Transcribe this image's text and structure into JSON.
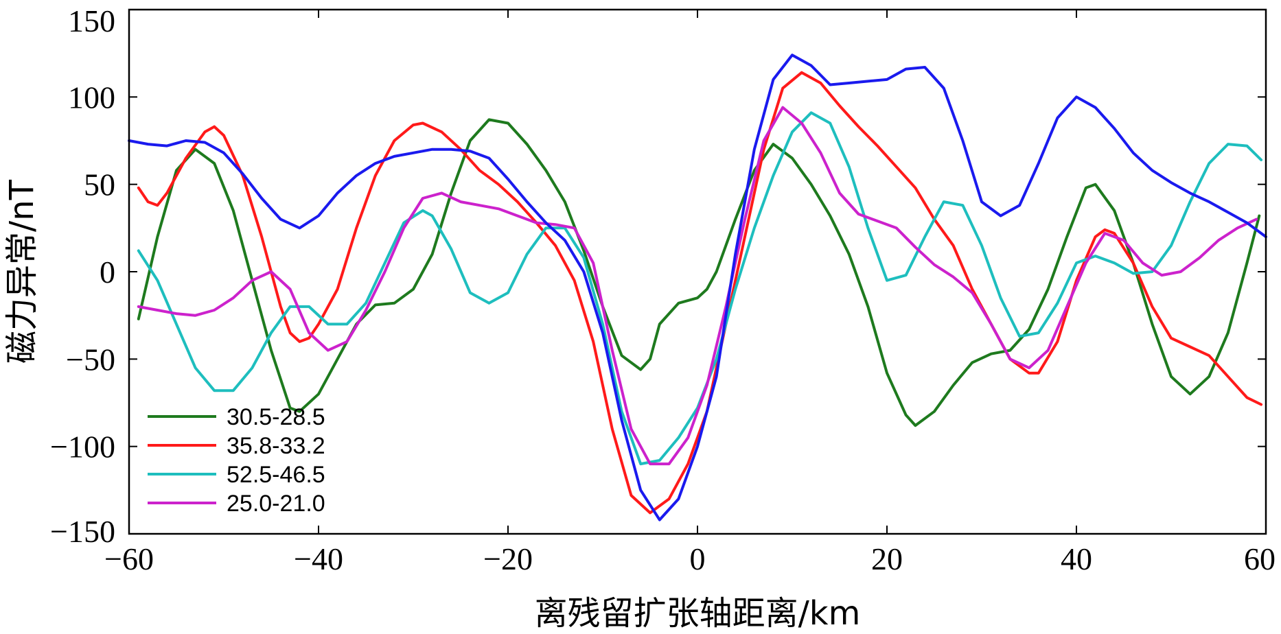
{
  "chart_data": {
    "type": "line",
    "title": "",
    "xlabel": "离残留扩张轴距离/km",
    "ylabel": "磁力异常/nT",
    "xlim": [
      -60,
      60
    ],
    "ylim": [
      -150,
      150
    ],
    "xticks": [
      -60,
      -40,
      -20,
      0,
      20,
      40,
      60
    ],
    "xtick_labels": [
      "−60",
      "−40",
      "−20",
      "0",
      "20",
      "40",
      "60"
    ],
    "yticks": [
      150,
      100,
      50,
      0,
      -50,
      -100,
      -150
    ],
    "ytick_labels": [
      "150",
      "100",
      "50",
      "0",
      "−50",
      "−100",
      "−150"
    ],
    "grid": false,
    "legend_position": "bottom-left",
    "series": [
      {
        "name": "30.5-28.5",
        "color": "#1e7a1e",
        "points": [
          [
            -59,
            -27
          ],
          [
            -57,
            20
          ],
          [
            -55,
            58
          ],
          [
            -53,
            70
          ],
          [
            -51,
            62
          ],
          [
            -49,
            35
          ],
          [
            -47,
            -5
          ],
          [
            -45,
            -45
          ],
          [
            -43,
            -78
          ],
          [
            -42,
            -80
          ],
          [
            -40,
            -70
          ],
          [
            -38,
            -50
          ],
          [
            -36,
            -30
          ],
          [
            -34,
            -19
          ],
          [
            -32,
            -18
          ],
          [
            -30,
            -10
          ],
          [
            -28,
            10
          ],
          [
            -26,
            45
          ],
          [
            -24,
            75
          ],
          [
            -22,
            87
          ],
          [
            -20,
            85
          ],
          [
            -18,
            73
          ],
          [
            -16,
            58
          ],
          [
            -14,
            40
          ],
          [
            -12,
            12
          ],
          [
            -10,
            -20
          ],
          [
            -8,
            -48
          ],
          [
            -6,
            -56
          ],
          [
            -5,
            -50
          ],
          [
            -4,
            -30
          ],
          [
            -2,
            -18
          ],
          [
            0,
            -15
          ],
          [
            1,
            -10
          ],
          [
            2,
            0
          ],
          [
            4,
            30
          ],
          [
            6,
            58
          ],
          [
            8,
            73
          ],
          [
            10,
            65
          ],
          [
            12,
            50
          ],
          [
            14,
            32
          ],
          [
            16,
            10
          ],
          [
            18,
            -20
          ],
          [
            20,
            -58
          ],
          [
            22,
            -82
          ],
          [
            23,
            -88
          ],
          [
            25,
            -80
          ],
          [
            27,
            -65
          ],
          [
            29,
            -52
          ],
          [
            31,
            -47
          ],
          [
            33,
            -45
          ],
          [
            35,
            -33
          ],
          [
            37,
            -10
          ],
          [
            39,
            20
          ],
          [
            41,
            48
          ],
          [
            42,
            50
          ],
          [
            44,
            35
          ],
          [
            46,
            5
          ],
          [
            48,
            -30
          ],
          [
            50,
            -60
          ],
          [
            52,
            -70
          ],
          [
            54,
            -60
          ],
          [
            56,
            -35
          ],
          [
            58,
            5
          ],
          [
            59.3,
            32
          ]
        ]
      },
      {
        "name": "35.8-33.2",
        "color": "#ff1a1a",
        "points": [
          [
            -59,
            48
          ],
          [
            -58,
            40
          ],
          [
            -57,
            38
          ],
          [
            -56,
            45
          ],
          [
            -54,
            65
          ],
          [
            -52,
            80
          ],
          [
            -51,
            83
          ],
          [
            -50,
            78
          ],
          [
            -48,
            55
          ],
          [
            -46,
            20
          ],
          [
            -44,
            -20
          ],
          [
            -43,
            -35
          ],
          [
            -42,
            -40
          ],
          [
            -41,
            -38
          ],
          [
            -40,
            -30
          ],
          [
            -38,
            -10
          ],
          [
            -36,
            25
          ],
          [
            -34,
            55
          ],
          [
            -32,
            75
          ],
          [
            -30,
            84
          ],
          [
            -29,
            85
          ],
          [
            -27,
            80
          ],
          [
            -25,
            70
          ],
          [
            -23,
            58
          ],
          [
            -21,
            50
          ],
          [
            -19,
            40
          ],
          [
            -17,
            28
          ],
          [
            -15,
            15
          ],
          [
            -13,
            -5
          ],
          [
            -11,
            -40
          ],
          [
            -9,
            -90
          ],
          [
            -7,
            -128
          ],
          [
            -5,
            -138
          ],
          [
            -3,
            -130
          ],
          [
            -1,
            -110
          ],
          [
            1,
            -80
          ],
          [
            3,
            -30
          ],
          [
            5,
            20
          ],
          [
            7,
            70
          ],
          [
            9,
            105
          ],
          [
            11,
            114
          ],
          [
            13,
            108
          ],
          [
            15,
            95
          ],
          [
            17,
            83
          ],
          [
            19,
            72
          ],
          [
            21,
            60
          ],
          [
            23,
            48
          ],
          [
            25,
            30
          ],
          [
            27,
            15
          ],
          [
            29,
            -10
          ],
          [
            31,
            -30
          ],
          [
            33,
            -50
          ],
          [
            35,
            -58
          ],
          [
            36,
            -58
          ],
          [
            38,
            -40
          ],
          [
            40,
            -5
          ],
          [
            42,
            20
          ],
          [
            43,
            24
          ],
          [
            44,
            22
          ],
          [
            46,
            5
          ],
          [
            48,
            -20
          ],
          [
            50,
            -38
          ],
          [
            52,
            -43
          ],
          [
            54,
            -48
          ],
          [
            56,
            -60
          ],
          [
            58,
            -72
          ],
          [
            59.5,
            -76
          ]
        ]
      },
      {
        "name": "52.5-46.5",
        "color": "#1ebebe",
        "points": [
          [
            -59,
            12
          ],
          [
            -57,
            -5
          ],
          [
            -55,
            -30
          ],
          [
            -53,
            -55
          ],
          [
            -51,
            -68
          ],
          [
            -49,
            -68
          ],
          [
            -47,
            -55
          ],
          [
            -45,
            -35
          ],
          [
            -43,
            -20
          ],
          [
            -41,
            -20
          ],
          [
            -39,
            -30
          ],
          [
            -37,
            -30
          ],
          [
            -35,
            -18
          ],
          [
            -33,
            5
          ],
          [
            -31,
            28
          ],
          [
            -29,
            35
          ],
          [
            -28,
            32
          ],
          [
            -26,
            13
          ],
          [
            -24,
            -12
          ],
          [
            -22,
            -18
          ],
          [
            -20,
            -12
          ],
          [
            -18,
            10
          ],
          [
            -16,
            25
          ],
          [
            -14,
            25
          ],
          [
            -12,
            8
          ],
          [
            -10,
            -30
          ],
          [
            -8,
            -80
          ],
          [
            -6,
            -110
          ],
          [
            -4,
            -108
          ],
          [
            -2,
            -95
          ],
          [
            0,
            -78
          ],
          [
            2,
            -50
          ],
          [
            4,
            -10
          ],
          [
            6,
            25
          ],
          [
            8,
            55
          ],
          [
            10,
            80
          ],
          [
            12,
            91
          ],
          [
            14,
            85
          ],
          [
            16,
            60
          ],
          [
            18,
            25
          ],
          [
            20,
            -5
          ],
          [
            22,
            -2
          ],
          [
            24,
            20
          ],
          [
            26,
            40
          ],
          [
            28,
            38
          ],
          [
            30,
            15
          ],
          [
            32,
            -15
          ],
          [
            34,
            -37
          ],
          [
            36,
            -35
          ],
          [
            38,
            -18
          ],
          [
            40,
            5
          ],
          [
            42,
            9
          ],
          [
            44,
            5
          ],
          [
            46,
            -1
          ],
          [
            48,
            0
          ],
          [
            50,
            15
          ],
          [
            52,
            40
          ],
          [
            54,
            62
          ],
          [
            56,
            73
          ],
          [
            58,
            72
          ],
          [
            59.5,
            64
          ]
        ]
      },
      {
        "name": "25.0-21.0",
        "color": "#cc22cc",
        "points": [
          [
            -59,
            -20
          ],
          [
            -57,
            -22
          ],
          [
            -55,
            -24
          ],
          [
            -53,
            -25
          ],
          [
            -51,
            -22
          ],
          [
            -49,
            -15
          ],
          [
            -47,
            -5
          ],
          [
            -45,
            0
          ],
          [
            -43,
            -10
          ],
          [
            -41,
            -35
          ],
          [
            -39,
            -45
          ],
          [
            -37,
            -40
          ],
          [
            -35,
            -22
          ],
          [
            -33,
            0
          ],
          [
            -31,
            25
          ],
          [
            -29,
            42
          ],
          [
            -27,
            45
          ],
          [
            -25,
            40
          ],
          [
            -23,
            38
          ],
          [
            -21,
            36
          ],
          [
            -19,
            32
          ],
          [
            -17,
            28
          ],
          [
            -15,
            27
          ],
          [
            -13,
            25
          ],
          [
            -11,
            5
          ],
          [
            -9,
            -45
          ],
          [
            -7,
            -90
          ],
          [
            -5,
            -110
          ],
          [
            -3,
            -110
          ],
          [
            -1,
            -95
          ],
          [
            1,
            -65
          ],
          [
            3,
            -20
          ],
          [
            5,
            30
          ],
          [
            7,
            75
          ],
          [
            9,
            94
          ],
          [
            11,
            85
          ],
          [
            13,
            68
          ],
          [
            15,
            45
          ],
          [
            17,
            33
          ],
          [
            19,
            29
          ],
          [
            21,
            25
          ],
          [
            23,
            14
          ],
          [
            25,
            4
          ],
          [
            27,
            -3
          ],
          [
            29,
            -12
          ],
          [
            31,
            -30
          ],
          [
            33,
            -50
          ],
          [
            35,
            -55
          ],
          [
            37,
            -45
          ],
          [
            39,
            -20
          ],
          [
            41,
            5
          ],
          [
            43,
            22
          ],
          [
            45,
            18
          ],
          [
            47,
            5
          ],
          [
            49,
            -2
          ],
          [
            51,
            0
          ],
          [
            53,
            8
          ],
          [
            55,
            18
          ],
          [
            57,
            25
          ],
          [
            59,
            30
          ]
        ]
      },
      {
        "name": "",
        "color": "#1a1aee",
        "points": [
          [
            -60,
            75
          ],
          [
            -58,
            73
          ],
          [
            -56,
            72
          ],
          [
            -54,
            75
          ],
          [
            -52,
            74
          ],
          [
            -50,
            68
          ],
          [
            -48,
            56
          ],
          [
            -46,
            42
          ],
          [
            -44,
            30
          ],
          [
            -42,
            25
          ],
          [
            -40,
            32
          ],
          [
            -38,
            45
          ],
          [
            -36,
            55
          ],
          [
            -34,
            62
          ],
          [
            -32,
            66
          ],
          [
            -30,
            68
          ],
          [
            -28,
            70
          ],
          [
            -26,
            70
          ],
          [
            -24,
            69
          ],
          [
            -22,
            65
          ],
          [
            -20,
            53
          ],
          [
            -18,
            40
          ],
          [
            -16,
            28
          ],
          [
            -14,
            18
          ],
          [
            -12,
            0
          ],
          [
            -10,
            -35
          ],
          [
            -8,
            -85
          ],
          [
            -6,
            -125
          ],
          [
            -4,
            -142
          ],
          [
            -2,
            -130
          ],
          [
            0,
            -100
          ],
          [
            2,
            -60
          ],
          [
            4,
            10
          ],
          [
            6,
            70
          ],
          [
            8,
            110
          ],
          [
            10,
            124
          ],
          [
            12,
            118
          ],
          [
            14,
            107
          ],
          [
            16,
            108
          ],
          [
            18,
            109
          ],
          [
            20,
            110
          ],
          [
            22,
            116
          ],
          [
            24,
            117
          ],
          [
            26,
            105
          ],
          [
            28,
            75
          ],
          [
            30,
            40
          ],
          [
            32,
            32
          ],
          [
            34,
            38
          ],
          [
            36,
            62
          ],
          [
            38,
            88
          ],
          [
            40,
            100
          ],
          [
            42,
            94
          ],
          [
            44,
            82
          ],
          [
            46,
            68
          ],
          [
            48,
            58
          ],
          [
            50,
            51
          ],
          [
            52,
            45
          ],
          [
            54,
            40
          ],
          [
            56,
            34
          ],
          [
            58,
            28
          ],
          [
            60,
            20
          ]
        ]
      }
    ]
  }
}
